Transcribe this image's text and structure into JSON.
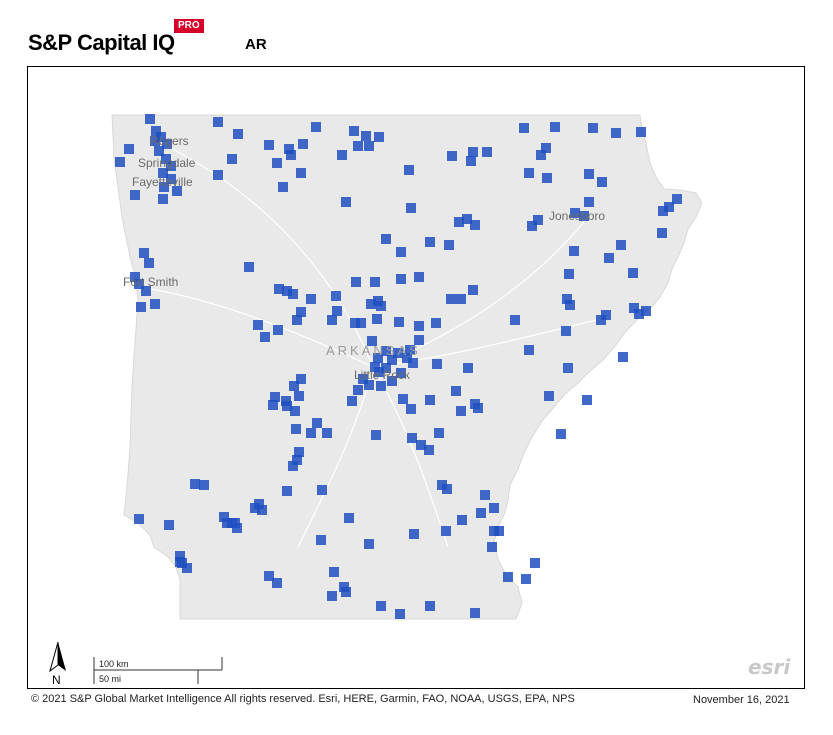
{
  "header": {
    "brand": "S&P Capital IQ",
    "badge": "PRO",
    "state_code": "AR"
  },
  "map": {
    "state_label": "ARKANSAS",
    "cities": [
      {
        "name": "Rogers"
      },
      {
        "name": "Springdale"
      },
      {
        "name": "Fayetteville"
      },
      {
        "name": "Fort Smith"
      },
      {
        "name": "Jonesboro"
      },
      {
        "name": "Little Rock"
      }
    ],
    "marker_color": "#1f4fbf",
    "land_color": "#e9e9e9",
    "north_label": "N",
    "scale_km": "100 km",
    "scale_mi": "50 mi",
    "watermark": "esri"
  },
  "footer": {
    "copyright": "© 2021 S&P Global Market Intelligence All rights reserved. Esri, HERE, Garmin, FAO, NOAA, USGS, EPA, NPS",
    "date": "November 16, 2021"
  }
}
